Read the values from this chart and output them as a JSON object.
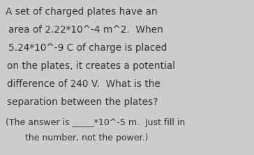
{
  "background_color": "#cccccc",
  "text_lines_main": [
    "A set of charged plates have an",
    "area of 2.22*10^-4 m^2.  When",
    "5.24*10^-9 C of charge is placed",
    "on the plates, it creates a potential",
    "difference of 240 V.  What is the",
    "separation between the plates?"
  ],
  "text_lines_sub": [
    "(The answer is _____*10^-5 m.  Just fill in",
    "the number, not the power.)"
  ],
  "main_fontsize": 9.8,
  "sub_fontsize": 9.0,
  "text_color": "#333333",
  "font_family": "DejaVu Sans"
}
